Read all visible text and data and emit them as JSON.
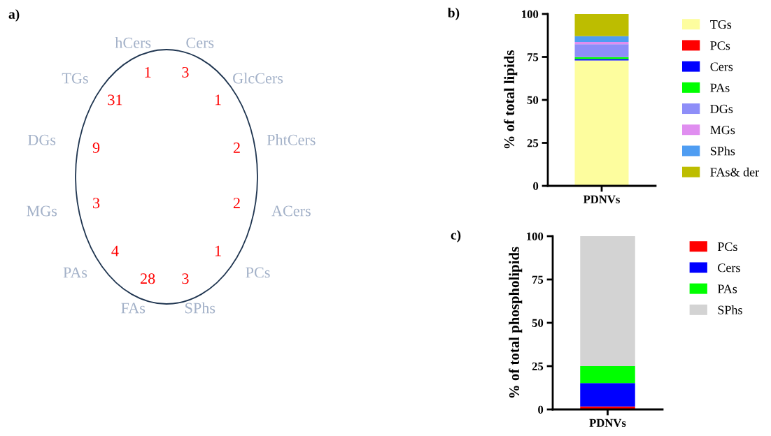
{
  "chart_data": [
    {
      "type": "other",
      "title": "a)",
      "categories": [
        "Cers",
        "GlcCers",
        "PhtCers",
        "ACers",
        "PCs",
        "SPhs",
        "FAs",
        "PAs",
        "MGs",
        "DGs",
        "TGs",
        "hCers"
      ],
      "values": [
        3,
        1,
        2,
        2,
        1,
        3,
        28,
        4,
        3,
        9,
        31,
        1
      ],
      "data_labels": true
    },
    {
      "type": "bar",
      "title": "b)",
      "stacked": true,
      "categories": [
        "PDNVs"
      ],
      "ylabel": "% of total lipids",
      "ylim": [
        0,
        100
      ],
      "yticks": [
        0,
        25,
        50,
        75,
        100
      ],
      "legend": "right",
      "series": [
        {
          "name": "TGs",
          "color": "#fdfd9e",
          "values": [
            73.0
          ]
        },
        {
          "name": "PCs",
          "color": "#ff0000",
          "values": [
            null
          ]
        },
        {
          "name": "Cers",
          "color": "#0000ff",
          "values": [
            0.8
          ]
        },
        {
          "name": "PAs",
          "color": "#00ff00",
          "values": [
            1.1
          ]
        },
        {
          "name": "DGs",
          "color": "#8e8ef8",
          "values": [
            7.5
          ]
        },
        {
          "name": "MGs",
          "color": "#e08ef0",
          "values": [
            1.3
          ]
        },
        {
          "name": "SPhs",
          "color": "#4f9df2",
          "values": [
            3.4
          ]
        },
        {
          "name": "FAs& der",
          "color": "#bdbd00",
          "values": [
            12.9
          ]
        }
      ]
    },
    {
      "type": "bar",
      "title": "c)",
      "stacked": true,
      "categories": [
        "PDNVs"
      ],
      "ylabel": "% of total phospholipids",
      "ylim": [
        0,
        100
      ],
      "yticks": [
        0,
        25,
        50,
        75,
        100
      ],
      "legend": "right",
      "series": [
        {
          "name": "PCs",
          "color": "#ff0000",
          "values": [
            1.7
          ]
        },
        {
          "name": "Cers",
          "color": "#0000ff",
          "values": [
            13.5
          ]
        },
        {
          "name": "PAs",
          "color": "#00ff00",
          "values": [
            9.8
          ]
        },
        {
          "name": "SPhs",
          "color": "#d3d3d3",
          "values": [
            75.0
          ]
        }
      ]
    }
  ]
}
